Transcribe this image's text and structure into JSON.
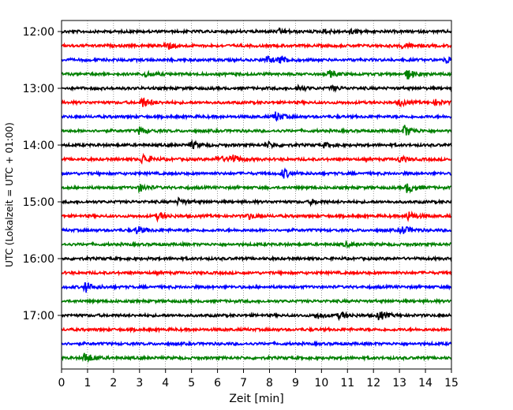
{
  "chart_data": {
    "type": "line",
    "title": "",
    "xlabel": "Zeit  [min]",
    "ylabel": "UTC (Lokalzeit = UTC + 01:00)",
    "xlim": [
      0,
      15
    ],
    "x_ticks": [
      0,
      1,
      2,
      3,
      4,
      5,
      6,
      7,
      8,
      9,
      10,
      11,
      12,
      13,
      14,
      15
    ],
    "x_tick_labels": [
      "0",
      "1",
      "2",
      "3",
      "4",
      "5",
      "6",
      "7",
      "8",
      "9",
      "10",
      "11",
      "12",
      "13",
      "14",
      "15"
    ],
    "y_tick_labels": [
      "12:00",
      "13:00",
      "14:00",
      "15:00",
      "16:00",
      "17:00"
    ],
    "y_tick_rows": [
      0,
      4,
      8,
      12,
      16,
      20
    ],
    "grid": "vertical dotted",
    "legend": "none",
    "row_minutes": 15,
    "row_colors": [
      "#000000",
      "#ff0000",
      "#0000ff",
      "#008000"
    ],
    "series": [
      {
        "start": "12:00",
        "color": "#000000",
        "events": [
          [
            8.4,
            0.35
          ],
          [
            10.1,
            0.3
          ],
          [
            11.1,
            0.3
          ]
        ]
      },
      {
        "start": "12:15",
        "color": "#ff0000",
        "events": [
          [
            4.0,
            0.7
          ],
          [
            13.1,
            0.4
          ]
        ]
      },
      {
        "start": "12:30",
        "color": "#0000ff",
        "events": [
          [
            7.9,
            0.45
          ],
          [
            8.4,
            0.6
          ],
          [
            14.8,
            0.5
          ]
        ]
      },
      {
        "start": "12:45",
        "color": "#008000",
        "events": [
          [
            3.2,
            0.4
          ],
          [
            10.3,
            0.45
          ],
          [
            13.3,
            0.7
          ]
        ]
      },
      {
        "start": "13:00",
        "color": "#000000",
        "events": [
          [
            9.1,
            0.35
          ],
          [
            10.4,
            0.3
          ]
        ]
      },
      {
        "start": "13:15",
        "color": "#ff0000",
        "events": [
          [
            3.1,
            0.7
          ],
          [
            13.0,
            0.4
          ],
          [
            14.4,
            0.35
          ]
        ]
      },
      {
        "start": "13:30",
        "color": "#0000ff",
        "events": [
          [
            8.2,
            0.7
          ]
        ]
      },
      {
        "start": "13:45",
        "color": "#008000",
        "events": [
          [
            3.0,
            0.5
          ],
          [
            13.2,
            0.8
          ]
        ]
      },
      {
        "start": "14:00",
        "color": "#000000",
        "events": [
          [
            5.0,
            0.45
          ],
          [
            7.9,
            0.4
          ],
          [
            10.1,
            0.3
          ]
        ]
      },
      {
        "start": "14:15",
        "color": "#ff0000",
        "events": [
          [
            3.1,
            0.75
          ],
          [
            6.0,
            0.5
          ],
          [
            6.5,
            0.75
          ],
          [
            13.0,
            0.4
          ]
        ]
      },
      {
        "start": "14:30",
        "color": "#0000ff",
        "events": [
          [
            8.5,
            0.7
          ]
        ]
      },
      {
        "start": "14:45",
        "color": "#008000",
        "events": [
          [
            3.0,
            0.5
          ],
          [
            13.3,
            0.7
          ]
        ]
      },
      {
        "start": "15:00",
        "color": "#000000",
        "events": [
          [
            4.5,
            0.4
          ],
          [
            9.6,
            0.3
          ]
        ]
      },
      {
        "start": "15:15",
        "color": "#ff0000",
        "events": [
          [
            3.7,
            0.5
          ],
          [
            7.2,
            0.4
          ],
          [
            13.3,
            0.7
          ]
        ]
      },
      {
        "start": "15:30",
        "color": "#0000ff",
        "events": [
          [
            2.9,
            0.55
          ],
          [
            13.1,
            0.6
          ]
        ]
      },
      {
        "start": "15:45",
        "color": "#008000",
        "events": [
          [
            10.9,
            0.3
          ]
        ]
      },
      {
        "start": "16:00",
        "color": "#000000",
        "events": []
      },
      {
        "start": "16:15",
        "color": "#ff0000",
        "events": []
      },
      {
        "start": "16:30",
        "color": "#0000ff",
        "events": [
          [
            0.9,
            0.75
          ]
        ]
      },
      {
        "start": "16:45",
        "color": "#008000",
        "events": []
      },
      {
        "start": "17:00",
        "color": "#000000",
        "events": [
          [
            9.8,
            0.45
          ],
          [
            10.7,
            0.45
          ],
          [
            12.2,
            0.65
          ]
        ]
      },
      {
        "start": "17:15",
        "color": "#ff0000",
        "events": []
      },
      {
        "start": "17:30",
        "color": "#0000ff",
        "events": []
      },
      {
        "start": "17:45",
        "color": "#008000",
        "events": [
          [
            0.9,
            0.75
          ]
        ]
      }
    ]
  }
}
